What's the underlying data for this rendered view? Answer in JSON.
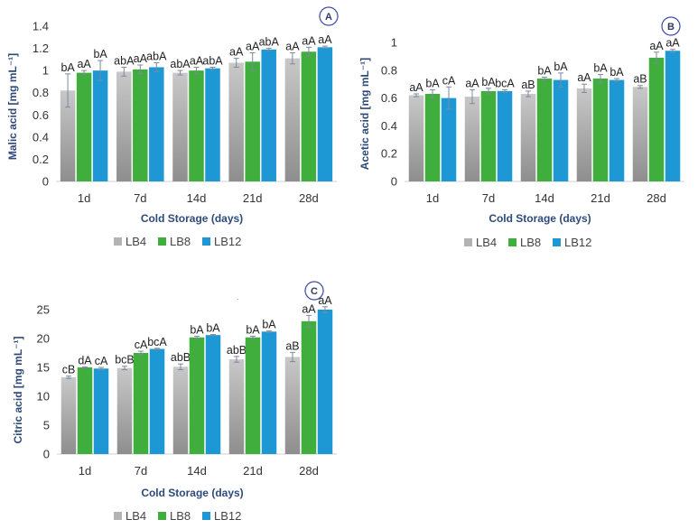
{
  "chart_data": [
    {
      "type": "bar",
      "panel": "A",
      "categories": [
        "1d",
        "7d",
        "14d",
        "21d",
        "28d"
      ],
      "series": [
        {
          "name": "LB4",
          "values": [
            0.82,
            0.99,
            0.98,
            1.07,
            1.11
          ],
          "errors": [
            0.15,
            0.04,
            0.02,
            0.04,
            0.05
          ],
          "labels": [
            "bA",
            "abA",
            "abA",
            "aA",
            "aA"
          ]
        },
        {
          "name": "LB8",
          "values": [
            0.98,
            1.01,
            1.0,
            1.08,
            1.17
          ],
          "errors": [
            0.02,
            0.04,
            0.03,
            0.08,
            0.04
          ],
          "labels": [
            "aA",
            "aA",
            "aA",
            "aA",
            "aA"
          ]
        },
        {
          "name": "LB12",
          "values": [
            1.0,
            1.03,
            1.02,
            1.19,
            1.21
          ],
          "errors": [
            0.09,
            0.04,
            0.01,
            0.01,
            0.01
          ],
          "labels": [
            "bA",
            "abA",
            "abA",
            "abA",
            "aA"
          ]
        }
      ],
      "xlabel": "Cold Storage  (days)",
      "ylabel": "Malic acid [mg mL⁻¹]",
      "yticks": [
        "0",
        "0.2",
        "0.4",
        "0.6",
        "0.8",
        "1",
        "1.2",
        "1.4"
      ],
      "ylim": [
        0,
        1.4
      ]
    },
    {
      "type": "bar",
      "panel": "B",
      "categories": [
        "1d",
        "7d",
        "14d",
        "21d",
        "28d"
      ],
      "series": [
        {
          "name": "LB4",
          "values": [
            0.62,
            0.61,
            0.63,
            0.67,
            0.68
          ],
          "errors": [
            0.01,
            0.05,
            0.02,
            0.03,
            0.01
          ],
          "labels": [
            "aA",
            "aA",
            "aB",
            "aA",
            "aB"
          ]
        },
        {
          "name": "LB8",
          "values": [
            0.63,
            0.65,
            0.74,
            0.74,
            0.89
          ],
          "errors": [
            0.03,
            0.02,
            0.01,
            0.03,
            0.04
          ],
          "labels": [
            "bA",
            "bA",
            "bA",
            "bA",
            "aA"
          ]
        },
        {
          "name": "LB12",
          "values": [
            0.6,
            0.65,
            0.73,
            0.73,
            0.94
          ],
          "errors": [
            0.08,
            0.01,
            0.05,
            0.01,
            0.01
          ],
          "labels": [
            "cA",
            "bcA",
            "bA",
            "bA",
            "aA"
          ]
        }
      ],
      "xlabel": "Cold Storage  (days)",
      "ylabel": "Acetic acid  [mg mL⁻¹]",
      "yticks": [
        "0",
        "0.2",
        "0.4",
        "0.6",
        "0.8",
        "1"
      ],
      "ylim": [
        0,
        1
      ]
    },
    {
      "type": "bar",
      "panel": "C",
      "categories": [
        "1d",
        "7d",
        "14d",
        "21d",
        "28d"
      ],
      "series": [
        {
          "name": "LB4",
          "values": [
            13.3,
            14.9,
            15.1,
            16.4,
            16.8
          ],
          "errors": [
            0.2,
            0.3,
            0.5,
            0.5,
            0.8
          ],
          "labels": [
            "cB",
            "bcB",
            "abB",
            "abB",
            "aB"
          ]
        },
        {
          "name": "LB8",
          "values": [
            15.0,
            17.5,
            20.2,
            20.2,
            23.0
          ],
          "errors": [
            0.1,
            0.3,
            0.2,
            0.2,
            1.0
          ],
          "labels": [
            "dA",
            "cA",
            "bA",
            "bA",
            "aA"
          ]
        },
        {
          "name": "LB12",
          "values": [
            14.8,
            18.2,
            20.6,
            21.2,
            25.0
          ],
          "errors": [
            0.2,
            0.1,
            0.1,
            0.1,
            0.5
          ],
          "labels": [
            "cA",
            "bcA",
            "bA",
            "bA",
            "aA"
          ]
        }
      ],
      "xlabel": "Cold Storage  (days)",
      "ylabel": "Citric acid [mg mL⁻¹]",
      "yticks": [
        "0",
        "5",
        "10",
        "15",
        "20",
        "25"
      ],
      "ylim": [
        0,
        25
      ]
    }
  ],
  "colors": {
    "LB4": "#b3b3b3",
    "LB4_dark": "#8a8a8a",
    "LB8": "#3fae3c",
    "LB12": "#1e98d4",
    "error_bar": "#7a8aa0",
    "axis_title": "#2e4a7a",
    "panel_circle": "#3a4aa8"
  }
}
